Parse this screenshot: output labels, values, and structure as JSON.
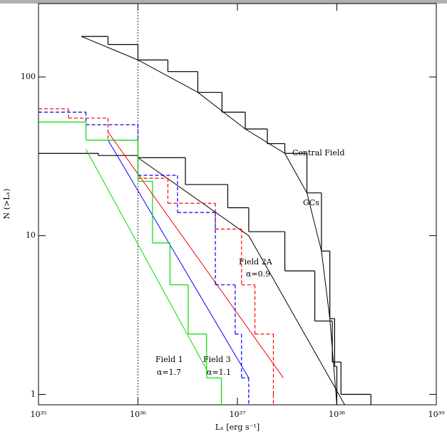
{
  "chart_data": {
    "type": "line",
    "xlabel": "Lₓ [erg s⁻¹]",
    "ylabel": "N (>Lₓ)",
    "xscale": "log",
    "yscale": "log",
    "xlim": [
      1e+35,
      1e+39
    ],
    "ylim": [
      0.86,
      290
    ],
    "xticks": [
      {
        "value": 1e+35,
        "label": "10³⁵"
      },
      {
        "value": 1e+36,
        "label": "10³⁶"
      },
      {
        "value": 1e+37,
        "label": "10³⁷"
      },
      {
        "value": 1e+38,
        "label": "10³⁸"
      },
      {
        "value": 1e+39,
        "label": "10³⁹"
      }
    ],
    "yticks": [
      1,
      10,
      100
    ],
    "vline": 1e+36,
    "series": [
      {
        "color": "#000000",
        "step": true,
        "dash": false,
        "x": [
          2.7e+35,
          5e+35,
          1e+36,
          2e+36,
          4e+36,
          7e+36,
          1.2e+37,
          2e+37,
          3e+37,
          5e+37,
          7e+37,
          8.5e+37,
          9.5e+37,
          1e+38
        ],
        "values": [
          180,
          160,
          128,
          108,
          80,
          60,
          47,
          38,
          33,
          18.6,
          8,
          3,
          1.5,
          0.86
        ]
      },
      {
        "color": "#000000",
        "step": false,
        "dash": false,
        "x": [
          2.7e+35,
          1e+36,
          4e+36,
          1.2e+37,
          3e+37,
          5e+37,
          7e+37,
          8.5e+37,
          1e+38
        ],
        "values": [
          180,
          128,
          80,
          47,
          33,
          18.6,
          8,
          3,
          0.86
        ]
      },
      {
        "color": "#000000",
        "step": true,
        "dash": false,
        "x": [
          1e+35,
          4e+35,
          1e+36,
          3e+36,
          8e+36,
          1.3e+37,
          3e+37,
          6e+37,
          9e+37,
          1.1e+38,
          2.2e+38
        ],
        "values": [
          33,
          32,
          31,
          21,
          15,
          10.6,
          6,
          2.9,
          1.6,
          1,
          1
        ]
      },
      {
        "color": "#000000",
        "step": false,
        "dash": false,
        "x": [
          1e+36,
          1.3e+37,
          1.2e+38
        ],
        "values": [
          31,
          10,
          0.86
        ]
      },
      {
        "color": "#ff0000",
        "step": true,
        "dash": true,
        "x": [
          1e+35,
          2e+35,
          5e+35,
          1e+36,
          2e+36,
          6e+36,
          1.1e+37,
          1.5e+37,
          2.3e+37
        ],
        "values": [
          63,
          55,
          40,
          23,
          16,
          11,
          4.9,
          2.4,
          1
        ]
      },
      {
        "color": "#ff0000",
        "step": false,
        "dash": false,
        "x": [
          5e+35,
          2.9e+37
        ],
        "values": [
          45,
          1.27
        ]
      },
      {
        "color": "#0000ff",
        "step": true,
        "dash": true,
        "x": [
          1e+35,
          3e+35,
          1e+36,
          2.5e+36,
          6e+36,
          9.5e+36,
          1.1e+37,
          1.3e+37
        ],
        "values": [
          60,
          50,
          24,
          14,
          4.9,
          2.4,
          1.27,
          1
        ]
      },
      {
        "color": "#0000ff",
        "step": false,
        "dash": false,
        "x": [
          5e+35,
          1.3e+37
        ],
        "values": [
          40,
          1.27
        ]
      },
      {
        "color": "#00dd00",
        "step": true,
        "dash": false,
        "x": [
          1e+35,
          3e+35,
          1e+36,
          1.4e+36,
          2.1e+36,
          3.2e+36,
          4.9e+36,
          6.9e+36
        ],
        "values": [
          52,
          40,
          22,
          9,
          4.9,
          2.4,
          1.27,
          1
        ]
      },
      {
        "color": "#00dd00",
        "step": false,
        "dash": false,
        "x": [
          3e+35,
          5e+36
        ],
        "values": [
          35,
          1.4
        ]
      }
    ],
    "annotations": [
      {
        "text": "Central Field",
        "color": "#000000"
      },
      {
        "text": "GCs",
        "color": "#000000"
      },
      {
        "text": "Field 2A",
        "color": "#ff0000"
      },
      {
        "text": "α=0.9",
        "color": "#ff0000"
      },
      {
        "text": "Field 1",
        "color": "#00dd00"
      },
      {
        "text": "α=1.7",
        "color": "#00dd00"
      },
      {
        "text": "Field 3",
        "color": "#0000ff"
      },
      {
        "text": "α=1.1",
        "color": "#0000ff"
      }
    ]
  }
}
